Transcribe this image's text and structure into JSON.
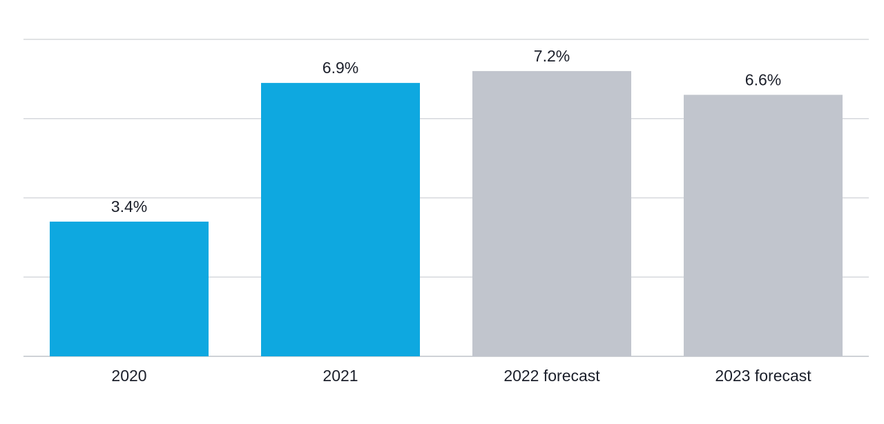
{
  "chart_data": {
    "type": "bar",
    "categories": [
      "2020",
      "2021",
      "2022 forecast",
      "2023 forecast"
    ],
    "values": [
      3.4,
      6.9,
      7.2,
      6.6
    ],
    "value_labels": [
      "3.4%",
      "6.9%",
      "7.2%",
      "6.6%"
    ],
    "bar_colors": [
      "#0ea8e0",
      "#0ea8e0",
      "#c1c5cd",
      "#c1c5cd"
    ],
    "title": "",
    "xlabel": "",
    "ylabel": "",
    "ylim": [
      0,
      8
    ],
    "gridlines": [
      0,
      2,
      4,
      6,
      8
    ],
    "grid": true,
    "legend": "none"
  }
}
